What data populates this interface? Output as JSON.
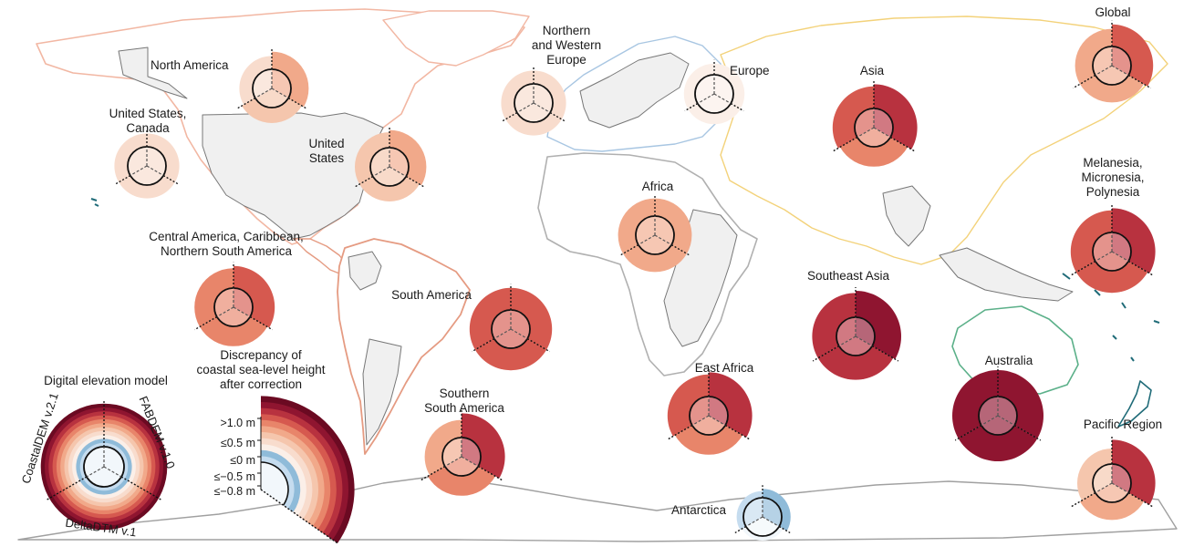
{
  "colors": {
    "scale": [
      "#f2f7fb",
      "#c5dcef",
      "#8fbbd9",
      "#fbefe8",
      "#f8dccd",
      "#f5c6ad",
      "#f1a98a",
      "#e8856a",
      "#d6594f",
      "#b8323f",
      "#8f1530",
      "#6b0a22"
    ],
    "land_highlight": "#f0f0f0",
    "land_border": "#888888",
    "region_coast": {
      "north_america": "#f2b7a3",
      "south_america": "#e59b82",
      "europe": "#a8c6e2",
      "asia": "#f3d27a",
      "africa": "#b0b0b0",
      "australia": "#5bb089",
      "pacific": "#1f6b78",
      "antarctica": "#a0a0a0"
    }
  },
  "legend": {
    "model_title": "Digital elevation model",
    "models": [
      "CoastalDEM v.2.1",
      "FABDEM v.1.0",
      "DeltaDTM v.1"
    ],
    "scale_title_lines": [
      "Discrepancy of",
      "coastal sea-level height",
      "after correction"
    ],
    "scale_ticks": [
      ">1.0 m",
      "≤0.5 m",
      "≤0 m",
      "≤−0.5 m",
      "≤−0.8 m"
    ]
  },
  "regions": [
    {
      "name": "North America",
      "label": [
        "North America"
      ],
      "levels": [
        6,
        5,
        4
      ]
    },
    {
      "name": "United States, Canada",
      "label": [
        "United States,",
        "Canada"
      ],
      "levels": [
        4,
        4,
        4
      ]
    },
    {
      "name": "United States",
      "label": [
        "United",
        "States"
      ],
      "levels": [
        6,
        5,
        5
      ]
    },
    {
      "name": "Northern and Western Europe",
      "label": [
        "Northern",
        "and Western",
        "Europe"
      ],
      "levels": [
        4,
        4,
        4
      ]
    },
    {
      "name": "Europe",
      "label": [
        "Europe"
      ],
      "levels": [
        3,
        3,
        3
      ]
    },
    {
      "name": "Asia",
      "label": [
        "Asia"
      ],
      "levels": [
        9,
        7,
        8
      ]
    },
    {
      "name": "Global",
      "label": [
        "Global"
      ],
      "levels": [
        8,
        6,
        6
      ]
    },
    {
      "name": "Africa",
      "label": [
        "Africa"
      ],
      "levels": [
        6,
        6,
        6
      ]
    },
    {
      "name": "Melanesia, Micronesia, Polynesia",
      "label": [
        "Melanesia,",
        "Micronesia,",
        "Polynesia"
      ],
      "levels": [
        9,
        8,
        8
      ]
    },
    {
      "name": "Central America, Caribbean, Northern South America",
      "label": [
        "Central America, Caribbean,",
        "Northern South America"
      ],
      "levels": [
        8,
        7,
        7
      ]
    },
    {
      "name": "South America",
      "label": [
        "South America"
      ],
      "levels": [
        8,
        8,
        8
      ]
    },
    {
      "name": "Southeast Asia",
      "label": [
        "Southeast Asia"
      ],
      "levels": [
        10,
        9,
        9
      ]
    },
    {
      "name": "East Africa",
      "label": [
        "East Africa"
      ],
      "levels": [
        9,
        7,
        8
      ]
    },
    {
      "name": "Australia",
      "label": [
        "Australia"
      ],
      "levels": [
        10,
        10,
        10
      ]
    },
    {
      "name": "Southern South America",
      "label": [
        "Southern",
        "South America"
      ],
      "levels": [
        9,
        7,
        6
      ]
    },
    {
      "name": "Pacific Region",
      "label": [
        "Pacific Region"
      ],
      "levels": [
        9,
        6,
        5
      ]
    },
    {
      "name": "Antarctica",
      "label": [
        "Antarctica"
      ],
      "levels": [
        2,
        0,
        1
      ]
    }
  ]
}
